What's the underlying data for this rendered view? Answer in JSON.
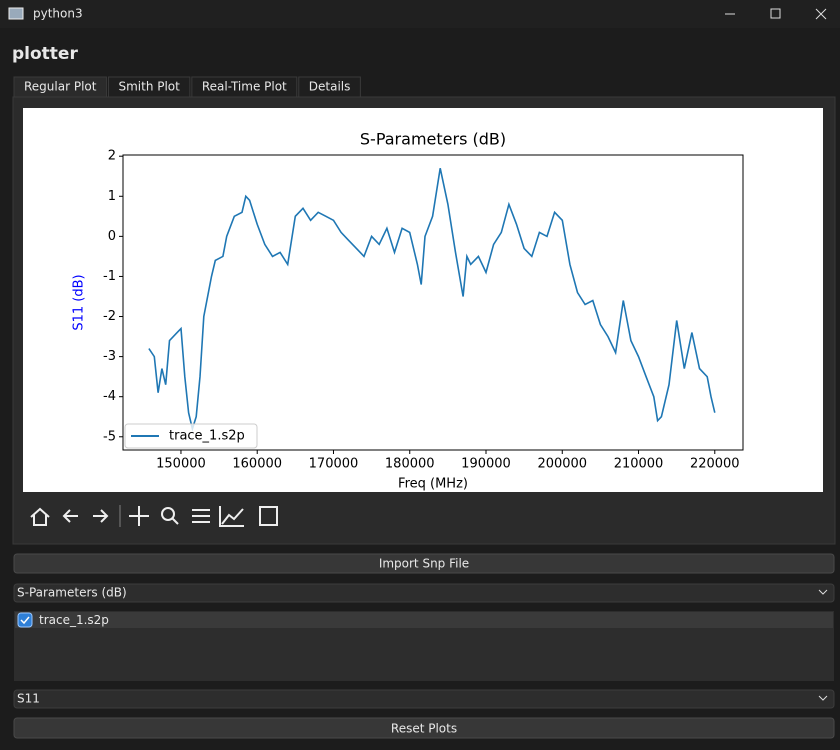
{
  "window": {
    "title": "python3"
  },
  "app_title": "plotter",
  "tabs": [
    "Regular Plot",
    "Smith Plot",
    "Real-Time Plot",
    "Details"
  ],
  "chart_data": {
    "type": "line",
    "title": "S-Parameters (dB)",
    "xlabel": "Freq (MHz)",
    "ylabel": "S11 (dB)",
    "ylabel_color": "#0000ff",
    "x": [
      145800,
      146500,
      147000,
      147500,
      148000,
      148500,
      149500,
      150000,
      150500,
      151000,
      151500,
      152000,
      152500,
      153000,
      154000,
      154500,
      155500,
      156000,
      157000,
      158000,
      158500,
      159000,
      160000,
      161000,
      162000,
      163000,
      164000,
      165000,
      166000,
      167000,
      168000,
      169000,
      170000,
      171000,
      172000,
      173000,
      174000,
      175000,
      176000,
      177000,
      178000,
      179000,
      180000,
      181000,
      181500,
      182000,
      183000,
      184000,
      185000,
      186000,
      187000,
      187500,
      188000,
      189000,
      190000,
      191000,
      192000,
      193000,
      194000,
      195000,
      196000,
      197000,
      198000,
      199000,
      200000,
      201000,
      202000,
      203000,
      204000,
      205000,
      206000,
      207000,
      208000,
      209000,
      210000,
      211000,
      212000,
      212500,
      213000,
      214000,
      215000,
      216000,
      217000,
      218000,
      219000,
      219500,
      220000
    ],
    "series": [
      {
        "name": "trace_1.s2p",
        "color": "#1f77b4",
        "values": [
          -2.8,
          -3.0,
          -3.9,
          -3.3,
          -3.7,
          -2.6,
          -2.4,
          -2.3,
          -3.5,
          -4.4,
          -4.8,
          -4.5,
          -3.5,
          -2.0,
          -1.0,
          -0.6,
          -0.5,
          0.0,
          0.5,
          0.6,
          1.0,
          0.9,
          0.3,
          -0.2,
          -0.5,
          -0.4,
          -0.7,
          0.5,
          0.7,
          0.4,
          0.6,
          0.5,
          0.4,
          0.1,
          -0.1,
          -0.3,
          -0.5,
          0.0,
          -0.2,
          0.2,
          -0.4,
          0.2,
          0.1,
          -0.7,
          -1.2,
          0.0,
          0.5,
          1.7,
          0.8,
          -0.4,
          -1.5,
          -0.5,
          -0.7,
          -0.5,
          -0.9,
          -0.2,
          0.1,
          0.8,
          0.3,
          -0.3,
          -0.5,
          0.1,
          0.0,
          0.6,
          0.4,
          -0.7,
          -1.4,
          -1.7,
          -1.6,
          -2.2,
          -2.5,
          -2.9,
          -1.6,
          -2.6,
          -3.0,
          -3.5,
          -4.0,
          -4.6,
          -4.5,
          -3.7,
          -2.1,
          -3.3,
          -2.4,
          -3.3,
          -3.5,
          -4.0,
          -4.4
        ]
      }
    ],
    "xlim": [
      142400,
      223700
    ],
    "ylim": [
      -5.33,
      2.03
    ],
    "xticks": [
      150000,
      160000,
      170000,
      180000,
      190000,
      200000,
      210000,
      220000
    ],
    "yticks": [
      -5,
      -4,
      -3,
      -2,
      -1,
      0,
      1,
      2
    ],
    "legend": "lower left"
  },
  "controls": {
    "import_button": "Import Snp File",
    "plot_type": "S-Parameters (dB)",
    "traces": [
      {
        "label": "trace_1.s2p",
        "checked": true
      }
    ],
    "parameter": "S11",
    "reset_button": "Reset Plots"
  }
}
